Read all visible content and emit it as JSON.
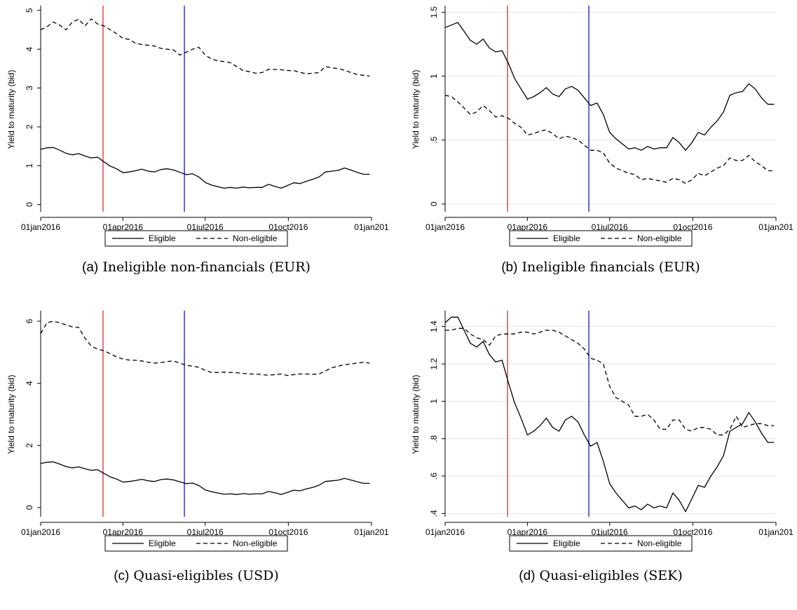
{
  "colors": {
    "line": "#000000",
    "event1": "#e8262b",
    "event2": "#1a1aa6",
    "plot_bg": "#ffffff",
    "grid": "#e6e6e6"
  },
  "legend": {
    "eligible_label": "Eligible",
    "non_eligible_label": "Non-eligible"
  },
  "chart_data": [
    {
      "type": "line",
      "caption_tag": "(a)",
      "caption_text": "Ineligible non-financials (EUR)",
      "ylabel": "Yield to maturity (bid)",
      "xlabel": "",
      "xlim": [
        "2016-01-01",
        "2017-01-01"
      ],
      "x_tick_labels": [
        "01jan2016",
        "01apr2016",
        "01jul2016",
        "01oct2016",
        "01jan201"
      ],
      "ylim": [
        -0.15,
        5.05
      ],
      "y_tick_values": [
        0,
        1,
        2,
        3,
        4,
        5
      ],
      "y_tick_labels": [
        "0",
        "1",
        "2",
        "3",
        "4",
        "5"
      ],
      "gridlines": false,
      "legend_position": "bottom",
      "event_lines": [
        "2016-03-10",
        "2016-06-08"
      ],
      "x": [
        "2016-01-01",
        "2016-01-08",
        "2016-01-15",
        "2016-01-22",
        "2016-01-29",
        "2016-02-05",
        "2016-02-12",
        "2016-02-19",
        "2016-02-26",
        "2016-03-04",
        "2016-03-11",
        "2016-03-18",
        "2016-03-25",
        "2016-04-01",
        "2016-04-08",
        "2016-04-15",
        "2016-04-22",
        "2016-04-29",
        "2016-05-06",
        "2016-05-13",
        "2016-05-20",
        "2016-05-27",
        "2016-06-03",
        "2016-06-10",
        "2016-06-17",
        "2016-06-24",
        "2016-07-01",
        "2016-07-08",
        "2016-07-15",
        "2016-07-22",
        "2016-07-29",
        "2016-08-05",
        "2016-08-12",
        "2016-08-19",
        "2016-08-26",
        "2016-09-02",
        "2016-09-09",
        "2016-09-16",
        "2016-09-23",
        "2016-09-30",
        "2016-10-07",
        "2016-10-14",
        "2016-10-21",
        "2016-10-28",
        "2016-11-04",
        "2016-11-11",
        "2016-11-18",
        "2016-11-25",
        "2016-12-02",
        "2016-12-09",
        "2016-12-16",
        "2016-12-23",
        "2016-12-30"
      ],
      "series": [
        {
          "name": "Eligible",
          "dash": "solid",
          "values": [
            1.42,
            1.46,
            1.47,
            1.4,
            1.32,
            1.28,
            1.31,
            1.25,
            1.2,
            1.22,
            1.1,
            0.99,
            0.92,
            0.82,
            0.84,
            0.87,
            0.91,
            0.86,
            0.84,
            0.9,
            0.92,
            0.89,
            0.83,
            0.77,
            0.79,
            0.71,
            0.57,
            0.5,
            0.46,
            0.42,
            0.44,
            0.42,
            0.45,
            0.43,
            0.44,
            0.44,
            0.52,
            0.47,
            0.42,
            0.49,
            0.56,
            0.54,
            0.6,
            0.65,
            0.71,
            0.84,
            0.86,
            0.88,
            0.94,
            0.89,
            0.83,
            0.78,
            0.78
          ]
        },
        {
          "name": "Non-eligible",
          "dash": "dashed",
          "values": [
            4.5,
            4.58,
            4.7,
            4.62,
            4.5,
            4.7,
            4.77,
            4.6,
            4.78,
            4.65,
            4.6,
            4.5,
            4.4,
            4.28,
            4.25,
            4.15,
            4.12,
            4.1,
            4.08,
            4.02,
            4.0,
            3.98,
            3.85,
            3.92,
            4.0,
            4.05,
            3.85,
            3.75,
            3.7,
            3.68,
            3.65,
            3.55,
            3.45,
            3.42,
            3.38,
            3.4,
            3.48,
            3.48,
            3.47,
            3.45,
            3.45,
            3.4,
            3.37,
            3.38,
            3.4,
            3.55,
            3.52,
            3.5,
            3.46,
            3.4,
            3.35,
            3.33,
            3.31
          ]
        }
      ]
    },
    {
      "type": "line",
      "caption_tag": "(b)",
      "caption_text": "Ineligible financials (EUR)",
      "ylabel": "Yield to maturity (bid)",
      "xlabel": "",
      "xlim": [
        "2016-01-01",
        "2017-01-01"
      ],
      "x_tick_labels": [
        "01jan2016",
        "01apr2016",
        "01jul2016",
        "01oct2016",
        "01jan201"
      ],
      "ylim": [
        -0.05,
        1.53
      ],
      "y_tick_values": [
        0,
        0.5,
        1,
        1.5
      ],
      "y_tick_labels": [
        "0",
        ".5",
        "1",
        "1.5"
      ],
      "gridlines": true,
      "legend_position": "bottom",
      "event_lines": [
        "2016-03-10",
        "2016-06-08"
      ],
      "x": [
        "2016-01-01",
        "2016-01-08",
        "2016-01-15",
        "2016-01-22",
        "2016-01-29",
        "2016-02-05",
        "2016-02-12",
        "2016-02-19",
        "2016-02-26",
        "2016-03-04",
        "2016-03-11",
        "2016-03-18",
        "2016-03-25",
        "2016-04-01",
        "2016-04-08",
        "2016-04-15",
        "2016-04-22",
        "2016-04-29",
        "2016-05-06",
        "2016-05-13",
        "2016-05-20",
        "2016-05-27",
        "2016-06-03",
        "2016-06-10",
        "2016-06-17",
        "2016-06-24",
        "2016-07-01",
        "2016-07-08",
        "2016-07-15",
        "2016-07-22",
        "2016-07-29",
        "2016-08-05",
        "2016-08-12",
        "2016-08-19",
        "2016-08-26",
        "2016-09-02",
        "2016-09-09",
        "2016-09-16",
        "2016-09-23",
        "2016-09-30",
        "2016-10-07",
        "2016-10-14",
        "2016-10-21",
        "2016-10-28",
        "2016-11-04",
        "2016-11-11",
        "2016-11-18",
        "2016-11-25",
        "2016-12-02",
        "2016-12-09",
        "2016-12-16",
        "2016-12-23",
        "2016-12-30"
      ],
      "series": [
        {
          "name": "Eligible",
          "dash": "solid",
          "values": [
            1.38,
            1.4,
            1.42,
            1.35,
            1.28,
            1.25,
            1.29,
            1.22,
            1.19,
            1.2,
            1.1,
            0.98,
            0.9,
            0.82,
            0.84,
            0.87,
            0.91,
            0.86,
            0.84,
            0.9,
            0.92,
            0.89,
            0.83,
            0.77,
            0.79,
            0.7,
            0.56,
            0.51,
            0.47,
            0.43,
            0.44,
            0.42,
            0.45,
            0.43,
            0.44,
            0.44,
            0.52,
            0.48,
            0.42,
            0.48,
            0.56,
            0.54,
            0.6,
            0.65,
            0.72,
            0.85,
            0.87,
            0.88,
            0.94,
            0.9,
            0.83,
            0.78,
            0.78
          ]
        },
        {
          "name": "Non-eligible",
          "dash": "dashed",
          "values": [
            0.85,
            0.84,
            0.8,
            0.75,
            0.7,
            0.72,
            0.77,
            0.73,
            0.68,
            0.69,
            0.67,
            0.63,
            0.6,
            0.54,
            0.55,
            0.57,
            0.58,
            0.55,
            0.51,
            0.53,
            0.52,
            0.5,
            0.46,
            0.42,
            0.42,
            0.4,
            0.32,
            0.28,
            0.26,
            0.24,
            0.23,
            0.19,
            0.2,
            0.19,
            0.18,
            0.17,
            0.2,
            0.19,
            0.16,
            0.19,
            0.24,
            0.22,
            0.25,
            0.28,
            0.3,
            0.36,
            0.34,
            0.34,
            0.38,
            0.33,
            0.3,
            0.26,
            0.26
          ]
        }
      ]
    },
    {
      "type": "line",
      "caption_tag": "(c)",
      "caption_text": "Quasi-eligibles (USD)",
      "ylabel": "Yield to maturity (bid)",
      "xlabel": "",
      "xlim": [
        "2016-01-01",
        "2017-01-01"
      ],
      "x_tick_labels": [
        "01jan2016",
        "01apr2016",
        "01jul2016",
        "01oct2016",
        "01jan201"
      ],
      "ylim": [
        -0.25,
        6.25
      ],
      "y_tick_values": [
        0,
        2,
        4,
        6
      ],
      "y_tick_labels": [
        "0",
        "2",
        "4",
        "6"
      ],
      "gridlines": false,
      "legend_position": "bottom",
      "event_lines": [
        "2016-03-10",
        "2016-06-08"
      ],
      "x": [
        "2016-01-01",
        "2016-01-08",
        "2016-01-15",
        "2016-01-22",
        "2016-01-29",
        "2016-02-05",
        "2016-02-12",
        "2016-02-19",
        "2016-02-26",
        "2016-03-04",
        "2016-03-11",
        "2016-03-18",
        "2016-03-25",
        "2016-04-01",
        "2016-04-08",
        "2016-04-15",
        "2016-04-22",
        "2016-04-29",
        "2016-05-06",
        "2016-05-13",
        "2016-05-20",
        "2016-05-27",
        "2016-06-03",
        "2016-06-10",
        "2016-06-17",
        "2016-06-24",
        "2016-07-01",
        "2016-07-08",
        "2016-07-15",
        "2016-07-22",
        "2016-07-29",
        "2016-08-05",
        "2016-08-12",
        "2016-08-19",
        "2016-08-26",
        "2016-09-02",
        "2016-09-09",
        "2016-09-16",
        "2016-09-23",
        "2016-09-30",
        "2016-10-07",
        "2016-10-14",
        "2016-10-21",
        "2016-10-28",
        "2016-11-04",
        "2016-11-11",
        "2016-11-18",
        "2016-11-25",
        "2016-12-02",
        "2016-12-09",
        "2016-12-16",
        "2016-12-23",
        "2016-12-30"
      ],
      "series": [
        {
          "name": "Eligible",
          "dash": "solid",
          "values": [
            1.42,
            1.46,
            1.47,
            1.4,
            1.32,
            1.28,
            1.31,
            1.25,
            1.2,
            1.22,
            1.1,
            0.99,
            0.92,
            0.82,
            0.84,
            0.87,
            0.91,
            0.86,
            0.84,
            0.9,
            0.92,
            0.89,
            0.83,
            0.77,
            0.79,
            0.71,
            0.57,
            0.51,
            0.47,
            0.43,
            0.44,
            0.42,
            0.45,
            0.43,
            0.44,
            0.44,
            0.52,
            0.48,
            0.42,
            0.49,
            0.56,
            0.54,
            0.6,
            0.65,
            0.72,
            0.84,
            0.86,
            0.88,
            0.94,
            0.89,
            0.83,
            0.78,
            0.78
          ]
        },
        {
          "name": "Non-eligible",
          "dash": "dashed",
          "values": [
            5.6,
            5.95,
            6.0,
            5.95,
            5.88,
            5.82,
            5.8,
            5.45,
            5.2,
            5.1,
            5.05,
            4.95,
            4.85,
            4.78,
            4.75,
            4.74,
            4.72,
            4.68,
            4.65,
            4.67,
            4.7,
            4.72,
            4.65,
            4.58,
            4.55,
            4.52,
            4.42,
            4.35,
            4.35,
            4.36,
            4.35,
            4.34,
            4.32,
            4.3,
            4.3,
            4.28,
            4.26,
            4.28,
            4.3,
            4.25,
            4.28,
            4.3,
            4.3,
            4.29,
            4.3,
            4.4,
            4.5,
            4.55,
            4.6,
            4.62,
            4.65,
            4.68,
            4.65
          ]
        }
      ]
    },
    {
      "type": "line",
      "caption_tag": "(d)",
      "caption_text": "Quasi-eligibles (SEK)",
      "ylabel": "Yield to maturity (bid)",
      "xlabel": "",
      "xlim": [
        "2016-01-01",
        "2017-01-01"
      ],
      "x_tick_labels": [
        "01jan2016",
        "01apr2016",
        "01jul2016",
        "01oct2016",
        "01jan201"
      ],
      "ylim": [
        0.39,
        1.47
      ],
      "y_tick_values": [
        0.4,
        0.6,
        0.8,
        1.0,
        1.2,
        1.4
      ],
      "y_tick_labels": [
        ".4",
        ".6",
        ".8",
        "1",
        "1.2",
        "1.4"
      ],
      "gridlines": true,
      "legend_position": "bottom",
      "event_lines": [
        "2016-03-10",
        "2016-06-08"
      ],
      "x": [
        "2016-01-01",
        "2016-01-08",
        "2016-01-15",
        "2016-01-22",
        "2016-01-29",
        "2016-02-05",
        "2016-02-12",
        "2016-02-19",
        "2016-02-26",
        "2016-03-04",
        "2016-03-11",
        "2016-03-18",
        "2016-03-25",
        "2016-04-01",
        "2016-04-08",
        "2016-04-15",
        "2016-04-22",
        "2016-04-29",
        "2016-05-06",
        "2016-05-13",
        "2016-05-20",
        "2016-05-27",
        "2016-06-03",
        "2016-06-10",
        "2016-06-17",
        "2016-06-24",
        "2016-07-01",
        "2016-07-08",
        "2016-07-15",
        "2016-07-22",
        "2016-07-29",
        "2016-08-05",
        "2016-08-12",
        "2016-08-19",
        "2016-08-26",
        "2016-09-02",
        "2016-09-09",
        "2016-09-16",
        "2016-09-23",
        "2016-09-30",
        "2016-10-07",
        "2016-10-14",
        "2016-10-21",
        "2016-10-28",
        "2016-11-04",
        "2016-11-11",
        "2016-11-18",
        "2016-11-25",
        "2016-12-02",
        "2016-12-09",
        "2016-12-16",
        "2016-12-23",
        "2016-12-30"
      ],
      "series": [
        {
          "name": "Eligible",
          "dash": "solid",
          "values": [
            1.42,
            1.45,
            1.45,
            1.38,
            1.31,
            1.29,
            1.32,
            1.25,
            1.21,
            1.22,
            1.1,
            0.99,
            0.91,
            0.82,
            0.84,
            0.87,
            0.91,
            0.86,
            0.84,
            0.9,
            0.92,
            0.89,
            0.82,
            0.76,
            0.78,
            0.68,
            0.56,
            0.51,
            0.47,
            0.43,
            0.44,
            0.42,
            0.45,
            0.43,
            0.44,
            0.43,
            0.51,
            0.47,
            0.41,
            0.48,
            0.55,
            0.54,
            0.6,
            0.65,
            0.71,
            0.84,
            0.86,
            0.88,
            0.94,
            0.89,
            0.83,
            0.78,
            0.78
          ]
        },
        {
          "name": "Non-eligible",
          "dash": "dashed",
          "values": [
            1.38,
            1.38,
            1.39,
            1.39,
            1.36,
            1.34,
            1.33,
            1.3,
            1.35,
            1.36,
            1.36,
            1.36,
            1.37,
            1.37,
            1.36,
            1.37,
            1.38,
            1.38,
            1.37,
            1.35,
            1.33,
            1.31,
            1.28,
            1.23,
            1.22,
            1.2,
            1.08,
            1.02,
            1.0,
            0.98,
            0.92,
            0.92,
            0.93,
            0.9,
            0.85,
            0.85,
            0.9,
            0.9,
            0.85,
            0.84,
            0.86,
            0.86,
            0.85,
            0.82,
            0.82,
            0.85,
            0.92,
            0.86,
            0.87,
            0.88,
            0.88,
            0.87,
            0.87
          ]
        }
      ]
    }
  ]
}
